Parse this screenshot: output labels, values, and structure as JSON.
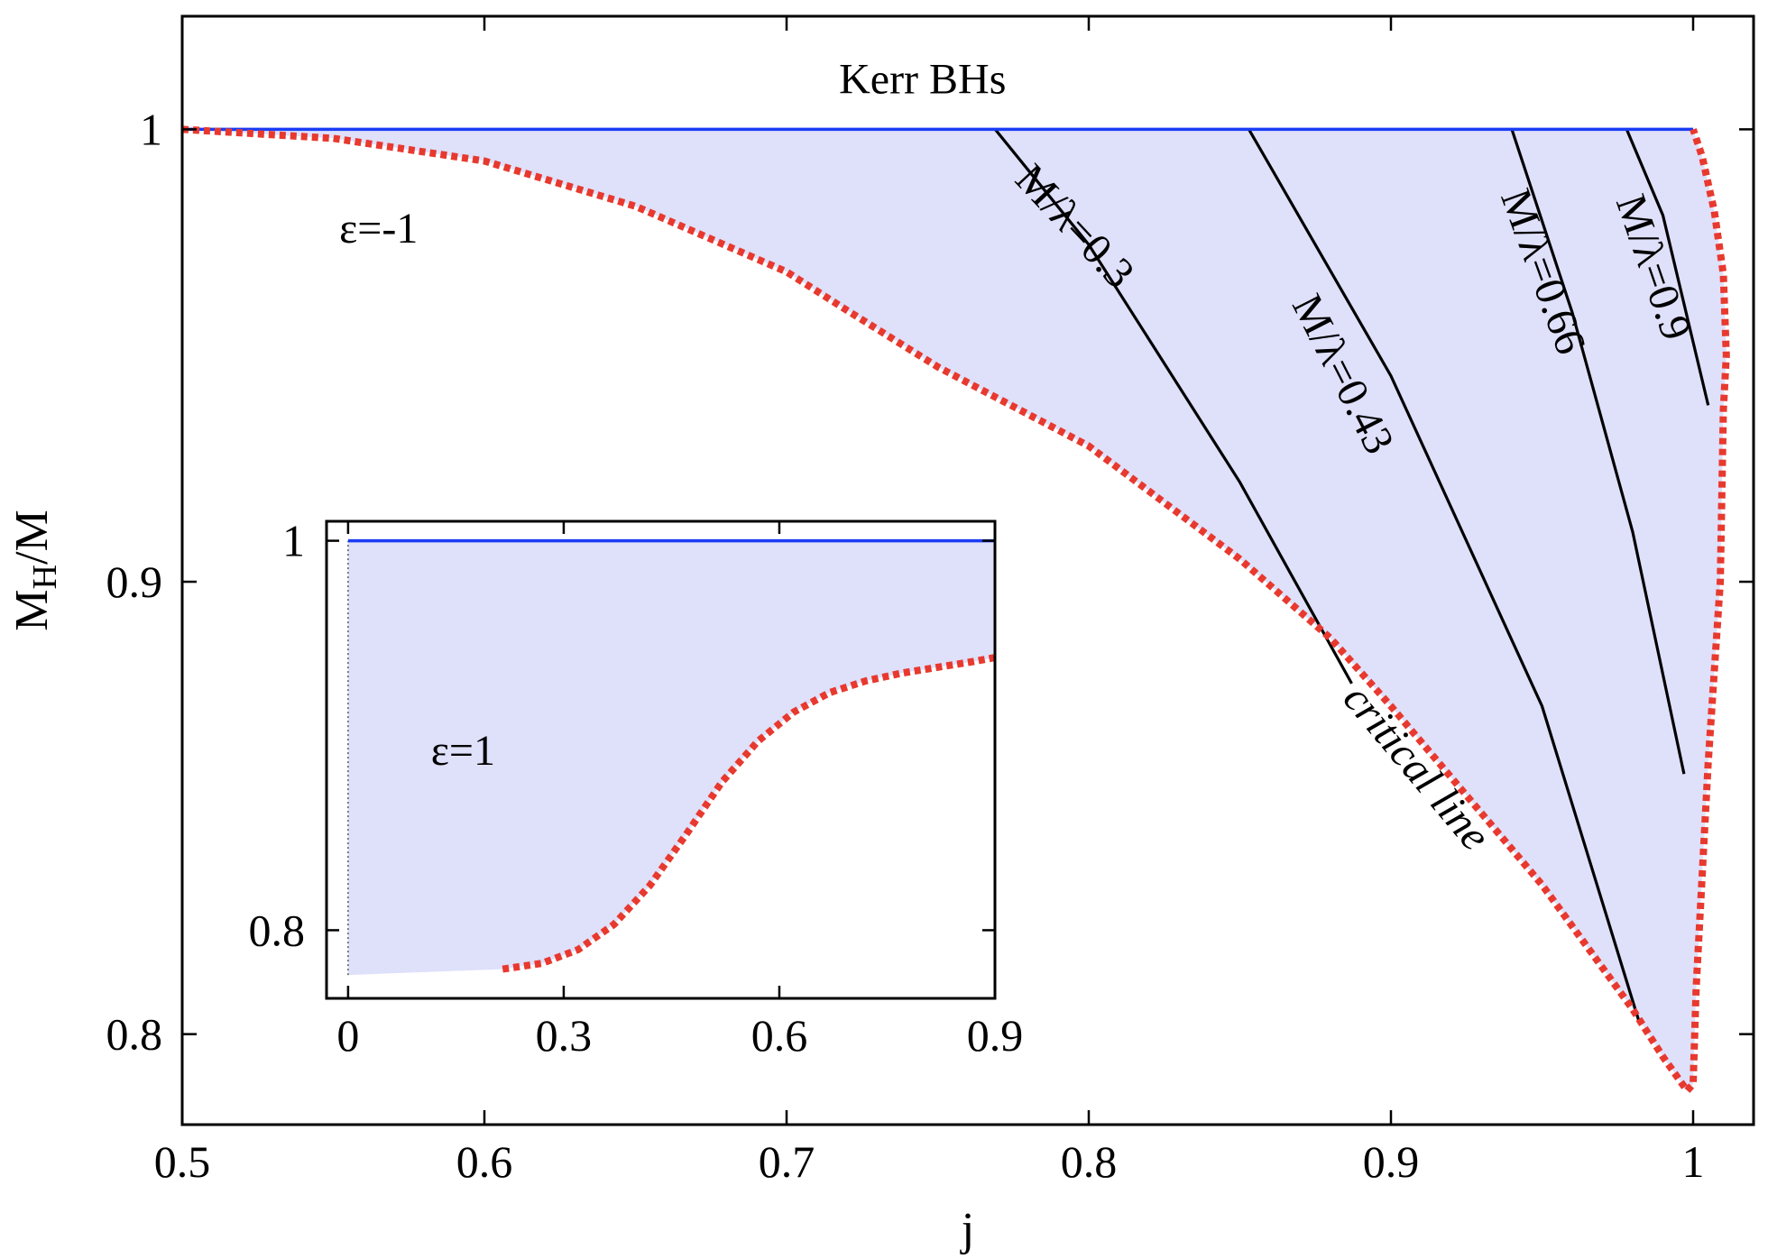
{
  "chart_data": {
    "type": "line",
    "title": "",
    "xlabel": "j",
    "ylabel_main": "M",
    "ylabel_sub": "H",
    "ylabel_tail": "/M",
    "xlim": [
      0.5,
      1.02
    ],
    "ylim": [
      0.78,
      1.025
    ],
    "xticks": [
      {
        "value": 0.5,
        "label": "0.5"
      },
      {
        "value": 0.6,
        "label": "0.6"
      },
      {
        "value": 0.7,
        "label": "0.7"
      },
      {
        "value": 0.8,
        "label": "0.8"
      },
      {
        "value": 0.9,
        "label": "0.9"
      },
      {
        "value": 1.0,
        "label": "1"
      }
    ],
    "yticks": [
      {
        "value": 0.8,
        "label": "0.8"
      },
      {
        "value": 0.9,
        "label": "0.9"
      },
      {
        "value": 1.0,
        "label": "1"
      }
    ],
    "kerr_label": "Kerr BHs",
    "epsilon_label": "ε=-1",
    "critical_label": "critical line",
    "kerr_line": {
      "x": [
        0.5,
        1.0
      ],
      "y": [
        1.0,
        1.0
      ],
      "color": "#1a3cf5"
    },
    "critical_line": {
      "color": "#e8392f",
      "x": [
        0.5,
        0.55,
        0.6,
        0.65,
        0.7,
        0.72,
        0.75,
        0.8,
        0.85,
        0.88,
        0.9,
        0.95,
        0.98,
        0.99,
        0.998,
        1.0,
        1.001,
        1.005,
        1.009,
        1.01,
        1.011,
        1.01,
        1.007,
        1.003,
        1.0
      ],
      "y": [
        1.0,
        0.998,
        0.993,
        0.983,
        0.9685,
        0.96,
        0.9475,
        0.93,
        0.905,
        0.8875,
        0.8725,
        0.833,
        0.8055,
        0.795,
        0.7875,
        0.789,
        0.81,
        0.86,
        0.9,
        0.938,
        0.95,
        0.968,
        0.982,
        0.994,
        1.0
      ]
    },
    "series": [
      {
        "name": "M/λ=0.3",
        "label": "M/λ=0.3",
        "x": [
          0.769,
          0.8,
          0.85,
          0.887
        ],
        "y": [
          1.0,
          0.9745,
          0.922,
          0.8775
        ],
        "label_x": 0.792,
        "label_y": 0.9765,
        "label_angle": 47
      },
      {
        "name": "M/λ=0.43",
        "label": "M/λ=0.43",
        "x": [
          0.853,
          0.9,
          0.95,
          0.982
        ],
        "y": [
          1.0,
          0.9455,
          0.8725,
          0.803
        ],
        "label_x": 0.88,
        "label_y": 0.9445,
        "label_angle": 63
      },
      {
        "name": "M/λ=0.66",
        "label": "M/λ=0.66",
        "x": [
          0.94,
          0.96,
          0.98,
          0.997
        ],
        "y": [
          1.0,
          0.9595,
          0.911,
          0.8575
        ],
        "label_x": 0.946,
        "label_y": 0.9675,
        "label_angle": 70
      },
      {
        "name": "M/λ=0.9",
        "label": "M/λ=0.9",
        "x": [
          0.978,
          0.99,
          1.005
        ],
        "y": [
          1.0,
          0.981,
          0.939
        ],
        "label_x": 0.9825,
        "label_y": 0.9685,
        "label_angle": 71
      }
    ],
    "inset": {
      "xlim": [
        -0.03,
        0.9
      ],
      "ylim": [
        0.765,
        1.01
      ],
      "xticks": [
        {
          "value": 0,
          "label": "0"
        },
        {
          "value": 0.3,
          "label": "0.3"
        },
        {
          "value": 0.6,
          "label": "0.6"
        },
        {
          "value": 0.9,
          "label": "0.9"
        }
      ],
      "yticks": [
        {
          "value": 0.8,
          "label": "0.8"
        },
        {
          "value": 1.0,
          "label": "1"
        }
      ],
      "epsilon_label": "ε=1",
      "kerr_line": {
        "x": [
          0.0,
          0.9
        ],
        "y": [
          1.0,
          1.0
        ]
      },
      "lower_edge": {
        "x": [
          0.0,
          0.215
        ],
        "y": [
          0.777,
          0.78
        ]
      },
      "critical_line": {
        "x": [
          0.215,
          0.27,
          0.32,
          0.37,
          0.42,
          0.47,
          0.52,
          0.57,
          0.62,
          0.67,
          0.72,
          0.77,
          0.82,
          0.87,
          0.9
        ],
        "y": [
          0.78,
          0.783,
          0.79,
          0.803,
          0.823,
          0.849,
          0.876,
          0.897,
          0.912,
          0.922,
          0.928,
          0.932,
          0.935,
          0.938,
          0.94
        ]
      }
    }
  }
}
